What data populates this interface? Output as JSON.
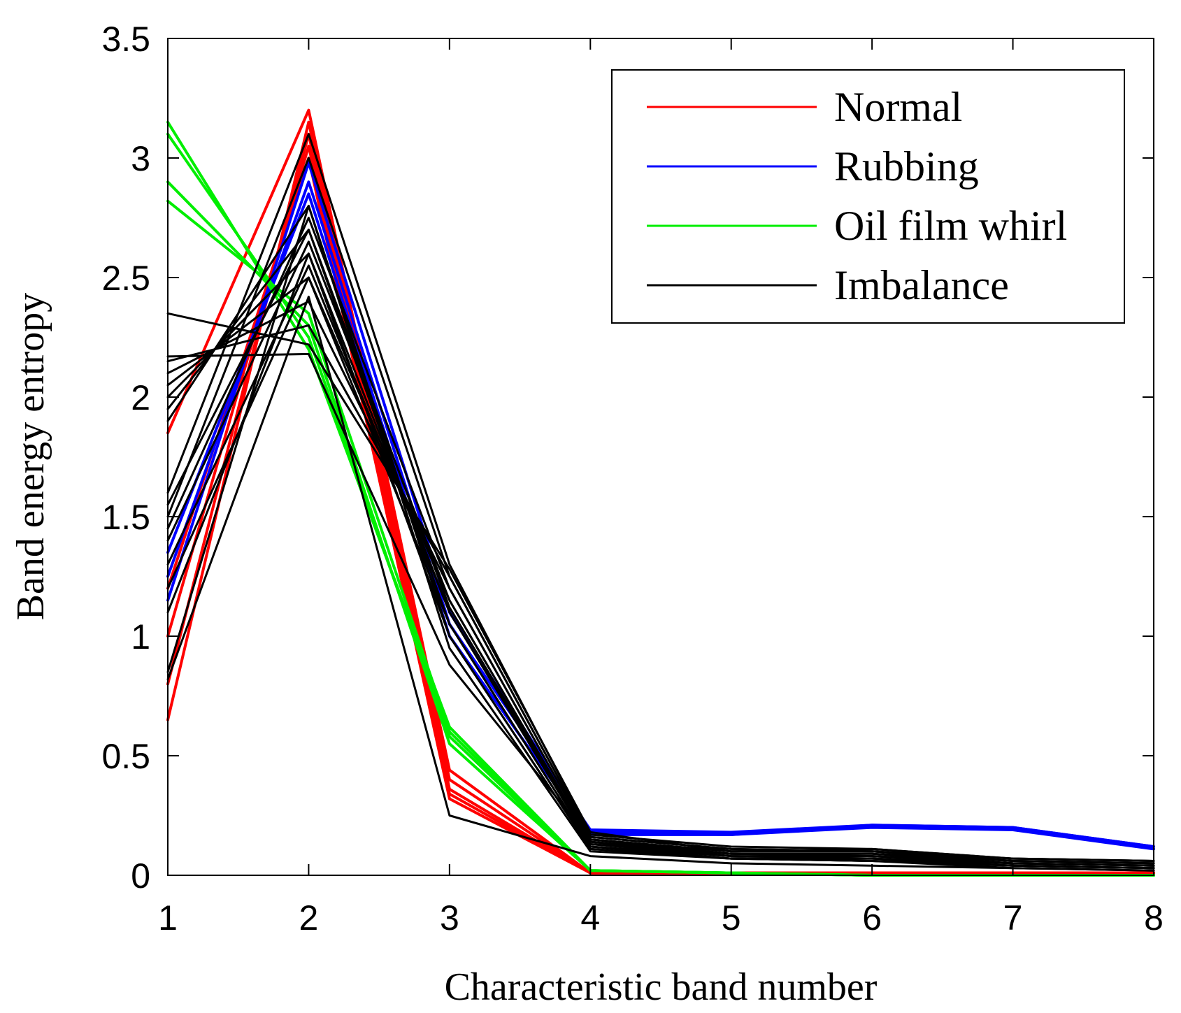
{
  "chart_data": {
    "type": "line",
    "title": "",
    "xlabel": "Characteristic band number",
    "ylabel": "Band energy entropy",
    "xlim": [
      1,
      8
    ],
    "ylim": [
      0,
      3.5
    ],
    "x": [
      1,
      2,
      3,
      4,
      5,
      6,
      7,
      8
    ],
    "xticks": [
      "1",
      "2",
      "3",
      "4",
      "5",
      "6",
      "7",
      "8"
    ],
    "yticks": [
      "0",
      "0.5",
      "1",
      "1.5",
      "2",
      "2.5",
      "3",
      "3.5"
    ],
    "legend_position": "top-right",
    "groups": [
      {
        "name": "Normal",
        "color": "#ff0000",
        "series": [
          [
            1.85,
            3.2,
            0.44,
            0.01,
            0.01,
            0.01,
            0.01,
            0.01
          ],
          [
            0.65,
            3.15,
            0.4,
            0.01,
            0.01,
            0.01,
            0.01,
            0.01
          ],
          [
            0.8,
            3.1,
            0.36,
            0.01,
            0.01,
            0.01,
            0.01,
            0.01
          ],
          [
            1.0,
            3.05,
            0.34,
            0.01,
            0.01,
            0.01,
            0.01,
            0.01
          ],
          [
            1.2,
            3.0,
            0.32,
            0.01,
            0.01,
            0.01,
            0.01,
            0.01
          ]
        ]
      },
      {
        "name": "Rubbing",
        "color": "#0000ff",
        "series": [
          [
            1.15,
            2.98,
            1.1,
            0.18,
            0.17,
            0.21,
            0.2,
            0.12
          ],
          [
            1.25,
            2.9,
            1.05,
            0.19,
            0.18,
            0.21,
            0.2,
            0.12
          ],
          [
            1.35,
            2.85,
            1.0,
            0.17,
            0.17,
            0.2,
            0.19,
            0.11
          ]
        ]
      },
      {
        "name": "Oil film whirl",
        "color": "#00ee00",
        "series": [
          [
            3.15,
            2.2,
            0.62,
            0.02,
            0.01,
            0.0,
            0.0,
            0.0
          ],
          [
            3.1,
            2.25,
            0.58,
            0.02,
            0.01,
            0.0,
            0.0,
            0.0
          ],
          [
            2.9,
            2.3,
            0.55,
            0.02,
            0.01,
            0.0,
            0.0,
            0.0
          ],
          [
            2.82,
            2.35,
            0.6,
            0.02,
            0.01,
            0.0,
            0.0,
            0.0
          ]
        ]
      },
      {
        "name": "Imbalance",
        "color": "#000000",
        "series": [
          [
            2.35,
            2.22,
            1.28,
            0.18,
            0.1,
            0.11,
            0.07,
            0.06
          ],
          [
            2.17,
            2.18,
            0.88,
            0.15,
            0.1,
            0.1,
            0.07,
            0.06
          ],
          [
            2.15,
            2.3,
            1.25,
            0.16,
            0.11,
            0.1,
            0.06,
            0.05
          ],
          [
            2.1,
            2.4,
            1.2,
            0.15,
            0.09,
            0.09,
            0.06,
            0.05
          ],
          [
            2.05,
            2.5,
            1.15,
            0.14,
            0.08,
            0.08,
            0.05,
            0.04
          ],
          [
            2.0,
            2.6,
            1.1,
            0.13,
            0.08,
            0.07,
            0.05,
            0.04
          ],
          [
            1.95,
            2.7,
            1.05,
            0.12,
            0.07,
            0.07,
            0.04,
            0.03
          ],
          [
            1.9,
            2.8,
            1.0,
            0.11,
            0.07,
            0.06,
            0.04,
            0.03
          ],
          [
            1.6,
            3.1,
            1.3,
            0.17,
            0.12,
            0.11,
            0.07,
            0.06
          ],
          [
            1.5,
            3.0,
            1.25,
            0.16,
            0.11,
            0.1,
            0.06,
            0.05
          ],
          [
            1.45,
            2.75,
            1.2,
            0.15,
            0.1,
            0.1,
            0.06,
            0.05
          ],
          [
            1.4,
            2.65,
            1.15,
            0.14,
            0.09,
            0.09,
            0.05,
            0.04
          ],
          [
            1.3,
            2.55,
            1.1,
            0.13,
            0.09,
            0.08,
            0.05,
            0.04
          ],
          [
            1.2,
            2.5,
            1.05,
            0.12,
            0.08,
            0.07,
            0.04,
            0.03
          ],
          [
            1.1,
            2.6,
            1.0,
            0.11,
            0.07,
            0.06,
            0.04,
            0.03
          ],
          [
            0.85,
            2.8,
            0.95,
            0.1,
            0.07,
            0.06,
            0.03,
            0.02
          ],
          [
            0.82,
            2.42,
            0.25,
            0.08,
            0.05,
            0.04,
            0.03,
            0.02
          ],
          [
            1.55,
            2.7,
            1.12,
            0.14,
            0.09,
            0.08,
            0.05,
            0.04
          ]
        ]
      }
    ]
  }
}
